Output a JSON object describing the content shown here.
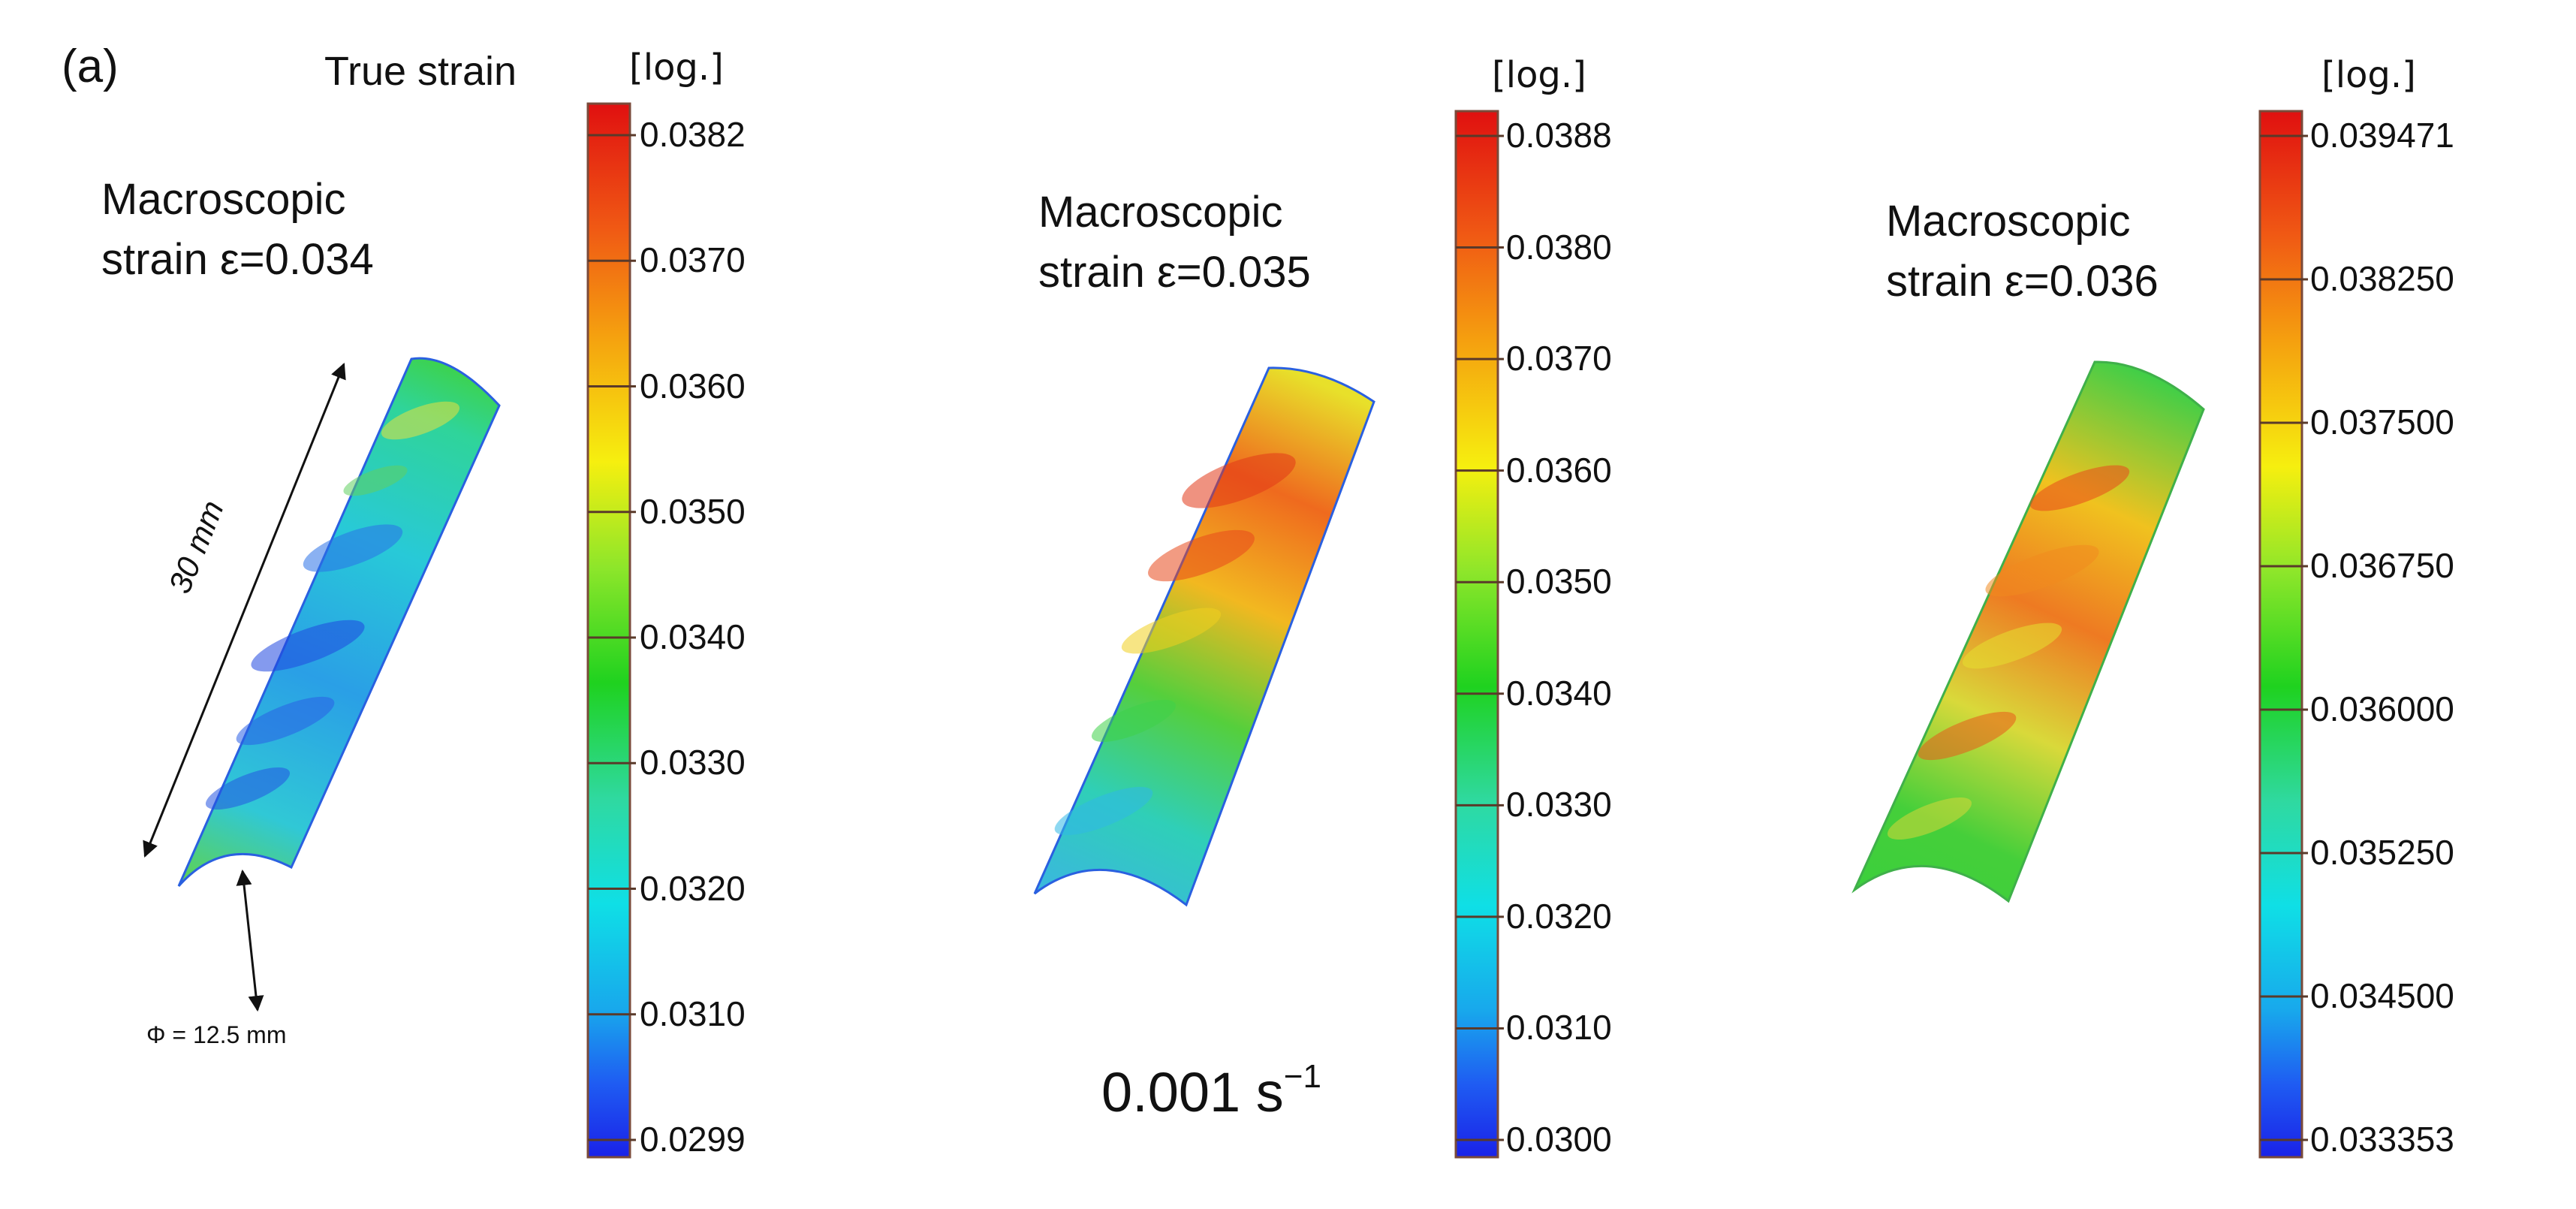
{
  "panel_label": "(a)",
  "title": "True strain",
  "unit": "[log.]",
  "dims": {
    "length": "30 mm",
    "diameter": "Φ = 12.5 mm"
  },
  "rate": {
    "value": "0.001 s",
    "exp": "−1"
  },
  "panels": [
    {
      "macro": "Macroscopic\nstrain ε=0.034",
      "ticks": [
        "0.0382",
        "0.0370",
        "0.0360",
        "0.0350",
        "0.0340",
        "0.0330",
        "0.0320",
        "0.0310",
        "0.0299"
      ]
    },
    {
      "macro": "Macroscopic\nstrain ε=0.035",
      "ticks": [
        "0.0388",
        "0.0380",
        "0.0370",
        "0.0360",
        "0.0350",
        "0.0340",
        "0.0330",
        "0.0320",
        "0.0310",
        "0.0300"
      ]
    },
    {
      "macro": "Macroscopic\nstrain ε=0.036",
      "ticks": [
        "0.039471",
        "0.038250",
        "0.037500",
        "0.036750",
        "0.036000",
        "0.035250",
        "0.034500",
        "0.033353"
      ]
    }
  ],
  "colorbar_colors": [
    "#e01010",
    "#f05a14",
    "#f5a00f",
    "#f6ef0f",
    "#8ee62a",
    "#1fd21f",
    "#2fd9a0",
    "#0fdfe6",
    "#18a8ec",
    "#1f5cf2",
    "#1a22e8"
  ]
}
